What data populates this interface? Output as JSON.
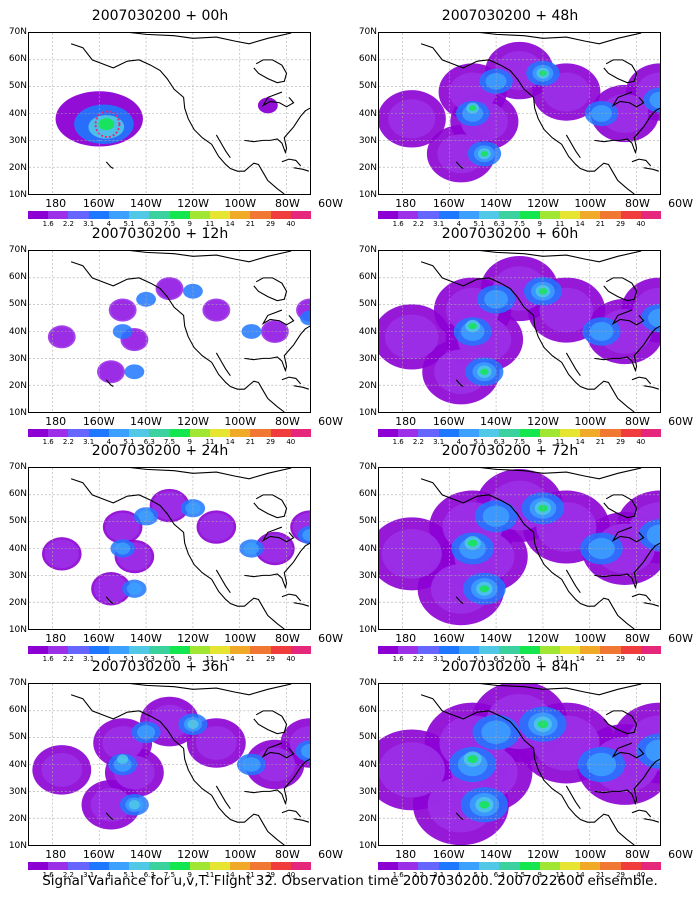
{
  "figure": {
    "caption": "Signal Variance for u,v,T. Flight 32. Observation time 2007030200. 2007022600 ensemble."
  },
  "map": {
    "lat_labels": [
      "70N",
      "60N",
      "50N",
      "40N",
      "30N",
      "20N",
      "10N"
    ],
    "lon_labels": [
      "180",
      "160W",
      "140W",
      "120W",
      "100W",
      "80W",
      "60W"
    ]
  },
  "colorbar": {
    "colors": [
      "#8c00d4",
      "#9b30e8",
      "#6666ff",
      "#1e78ff",
      "#3ca0ff",
      "#50c8e6",
      "#3cd2a0",
      "#14e650",
      "#a0e632",
      "#e6e632",
      "#f0aa28",
      "#f07832",
      "#f03c3c",
      "#e6287d"
    ],
    "labels": [
      "1.6",
      "2.2",
      "3.1",
      "4",
      "5.1",
      "6.3",
      "7.5",
      "9",
      "11",
      "14",
      "21",
      "29",
      "40"
    ]
  },
  "panels": [
    {
      "title": "2007030200 + 00h",
      "intensity": 0
    },
    {
      "title": "2007030200 + 48h",
      "intensity": 4
    },
    {
      "title": "2007030200 + 12h",
      "intensity": 1
    },
    {
      "title": "2007030200 + 60h",
      "intensity": 5
    },
    {
      "title": "2007030200 + 24h",
      "intensity": 2
    },
    {
      "title": "2007030200 + 72h",
      "intensity": 6
    },
    {
      "title": "2007030200 + 36h",
      "intensity": 3
    },
    {
      "title": "2007030200 + 84h",
      "intensity": 7
    }
  ]
}
